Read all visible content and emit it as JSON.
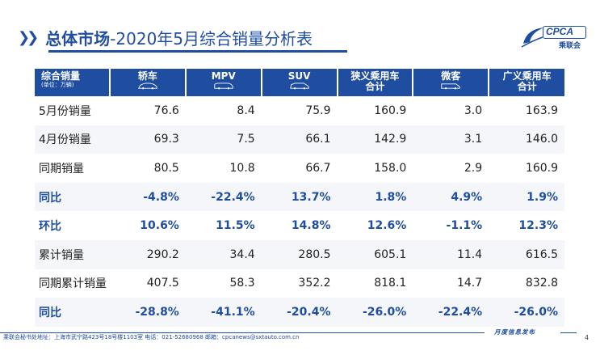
{
  "title": {
    "bold": "总体市场",
    "rest": "-2020年5月综合销量分析表"
  },
  "logo": {
    "text": "CPCA",
    "cn": "乘联会"
  },
  "watermark": "CPCA乘联会",
  "table": {
    "header_first": {
      "label": "综合销量",
      "unit": "(单位：万辆)"
    },
    "columns": [
      {
        "label": "轿车",
        "icon": "sedan-icon"
      },
      {
        "label": "MPV",
        "icon": "mpv-icon"
      },
      {
        "label": "SUV",
        "icon": "suv-icon"
      },
      {
        "label": "狭义乘用车\n合计"
      },
      {
        "label": "微客",
        "icon": "minivan-icon"
      },
      {
        "label": "广义乘用车\n合计"
      }
    ],
    "rows": [
      {
        "label": "5月份销量",
        "values": [
          "76.6",
          "8.4",
          "75.9",
          "160.9",
          "3.0",
          "163.9"
        ],
        "highlight": false
      },
      {
        "label": "4月份销量",
        "values": [
          "69.3",
          "7.5",
          "66.1",
          "142.9",
          "3.1",
          "146.0"
        ],
        "highlight": false
      },
      {
        "label": "同期销量",
        "values": [
          "80.5",
          "10.8",
          "66.7",
          "158.0",
          "2.9",
          "160.9"
        ],
        "highlight": false
      },
      {
        "label": "同比",
        "values": [
          "-4.8%",
          "-22.4%",
          "13.7%",
          "1.8%",
          "4.9%",
          "1.9%"
        ],
        "highlight": true
      },
      {
        "label": "环比",
        "values": [
          "10.6%",
          "11.5%",
          "14.8%",
          "12.6%",
          "-1.1%",
          "12.3%"
        ],
        "highlight": true
      },
      {
        "label": "累计销量",
        "values": [
          "290.2",
          "34.4",
          "280.5",
          "605.1",
          "11.4",
          "616.5"
        ],
        "highlight": false
      },
      {
        "label": "同期累计销量",
        "values": [
          "407.5",
          "58.3",
          "352.2",
          "818.1",
          "14.7",
          "832.8"
        ],
        "highlight": false
      },
      {
        "label": "同比",
        "values": [
          "-28.8%",
          "-41.1%",
          "-20.4%",
          "-26.0%",
          "-22.4%",
          "-26.0%"
        ],
        "highlight": true
      }
    ]
  },
  "footer": {
    "left": "乘联会秘书处地址：上海市武宁路423号18号楼1103室  电话：021-52680968  邮箱：cpcanews@sxtauto.com.cn",
    "right": "月度信息发布",
    "page": "4"
  },
  "colors": {
    "brand": "#1f4ea1"
  }
}
